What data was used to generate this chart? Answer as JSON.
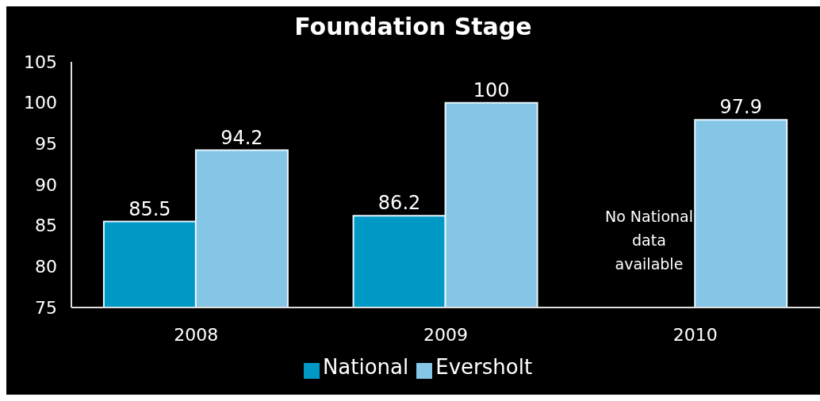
{
  "chart_data": {
    "type": "bar",
    "title": "Foundation Stage",
    "categories": [
      "2008",
      "2009",
      "2010"
    ],
    "series": [
      {
        "name": "National",
        "color": "#0099c6",
        "values": [
          85.5,
          86.2,
          null
        ]
      },
      {
        "name": "Eversholt",
        "color": "#85c5e5",
        "values": [
          94.2,
          100,
          97.9
        ]
      }
    ],
    "ylim": [
      75,
      105
    ],
    "yticks": [
      75,
      80,
      85,
      90,
      95,
      100,
      105
    ],
    "grid": false,
    "legend": "bottom",
    "data_labels": true,
    "annotations": [
      "No National data available"
    ]
  }
}
